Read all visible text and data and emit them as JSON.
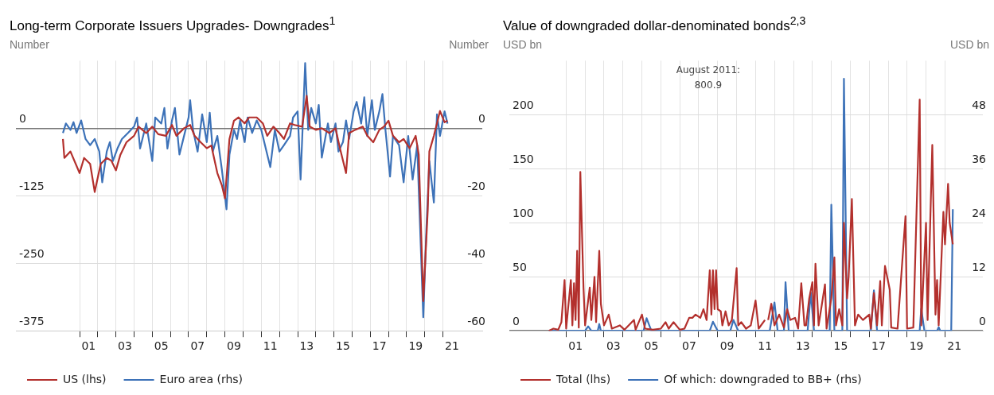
{
  "chart_data": [
    {
      "type": "line",
      "title": "Long-term Corporate Issuers Upgrades- Downgrades$^{1}$",
      "ylabel": "Number",
      "y2label": "Number",
      "legend": "bottom",
      "grid": true,
      "marker": "none",
      "xlim": [
        "1997-07",
        "2023-03"
      ],
      "xticks": [
        {
          "value": "2001-01",
          "label": null
        },
        {
          "value": "2001-07",
          "label": "01"
        },
        {
          "value": "2002-01",
          "label": null
        },
        {
          "value": "2003-01",
          "label": null
        },
        {
          "value": "2003-07",
          "label": "03"
        },
        {
          "value": "2004-01",
          "label": null
        },
        {
          "value": "2005-01",
          "label": null
        },
        {
          "value": "2005-07",
          "label": "05"
        },
        {
          "value": "2006-01",
          "label": null
        },
        {
          "value": "2007-01",
          "label": null
        },
        {
          "value": "2007-07",
          "label": "07"
        },
        {
          "value": "2008-01",
          "label": null
        },
        {
          "value": "2009-01",
          "label": null
        },
        {
          "value": "2009-07",
          "label": "09"
        },
        {
          "value": "2010-01",
          "label": null
        },
        {
          "value": "2011-01",
          "label": null
        },
        {
          "value": "2011-07",
          "label": "11"
        },
        {
          "value": "2012-01",
          "label": null
        },
        {
          "value": "2013-01",
          "label": null
        },
        {
          "value": "2013-07",
          "label": "13"
        },
        {
          "value": "2014-01",
          "label": null
        },
        {
          "value": "2015-01",
          "label": null
        },
        {
          "value": "2015-07",
          "label": "15"
        },
        {
          "value": "2016-01",
          "label": null
        },
        {
          "value": "2017-01",
          "label": null
        },
        {
          "value": "2017-07",
          "label": "17"
        },
        {
          "value": "2018-01",
          "label": null
        },
        {
          "value": "2019-01",
          "label": null
        },
        {
          "value": "2019-07",
          "label": "19"
        },
        {
          "value": "2020-01",
          "label": null
        },
        {
          "value": "2021-01",
          "label": null
        },
        {
          "value": "2021-07",
          "label": "21"
        }
      ],
      "ylim": [
        -375,
        125
      ],
      "yticks": [
        -375,
        -250,
        -125,
        0
      ],
      "y2lim": [
        -60,
        20
      ],
      "y2ticks": [
        -60,
        -40,
        -20,
        0
      ],
      "series": [
        {
          "name": "US (lhs)",
          "color": "#b3302d",
          "x": [
            "2000-02",
            "2000-03",
            "2000-07",
            "2001-01",
            "2001-04",
            "2001-08",
            "2001-11",
            "2002-03",
            "2002-07",
            "2002-10",
            "2003-01",
            "2003-04",
            "2003-08",
            "2004-01",
            "2004-04",
            "2004-09",
            "2005-01",
            "2005-05",
            "2005-10",
            "2006-02",
            "2006-05",
            "2006-10",
            "2007-02",
            "2007-05",
            "2007-09",
            "2008-01",
            "2008-04",
            "2008-08",
            "2008-11",
            "2009-01",
            "2009-04",
            "2009-07",
            "2009-10",
            "2010-02",
            "2010-05",
            "2010-10",
            "2011-02",
            "2011-05",
            "2011-09",
            "2012-01",
            "2012-04",
            "2012-08",
            "2012-11",
            "2013-04",
            "2013-07",
            "2013-09",
            "2014-01",
            "2014-05",
            "2014-10",
            "2015-02",
            "2015-05",
            "2015-09",
            "2015-11",
            "2016-03",
            "2016-08",
            "2016-11",
            "2017-03",
            "2017-07",
            "2017-10",
            "2018-01",
            "2018-04",
            "2018-08",
            "2018-11",
            "2019-03",
            "2019-07",
            "2019-09",
            "2019-12",
            "2020-03",
            "2020-04",
            "2020-07",
            "2020-09",
            "2020-11",
            "2021-02",
            "2021-04"
          ],
          "values": [
            -20,
            -55,
            -43,
            -83,
            -55,
            -66,
            -118,
            -66,
            -55,
            -60,
            -78,
            -49,
            -26,
            -14,
            3,
            -9,
            3,
            -11,
            -14,
            6,
            -14,
            0,
            6,
            -14,
            -26,
            -37,
            -32,
            -83,
            -106,
            -130,
            -20,
            14,
            20,
            9,
            20,
            20,
            9,
            -14,
            3,
            -9,
            -20,
            9,
            6,
            3,
            60,
            3,
            -3,
            0,
            -9,
            0,
            -37,
            -83,
            -9,
            -3,
            3,
            -14,
            -26,
            -3,
            3,
            14,
            -14,
            -26,
            -20,
            -37,
            -14,
            -49,
            -320,
            -150,
            -43,
            -14,
            9,
            32,
            11,
            14
          ]
        },
        {
          "name": "Euro area (rhs)",
          "color": "#3d72b8",
          "axis": "y2",
          "x": [
            "2000-02",
            "2000-04",
            "2000-07",
            "2000-09",
            "2000-11",
            "2001-02",
            "2001-05",
            "2001-08",
            "2001-11",
            "2002-02",
            "2002-04",
            "2002-07",
            "2002-09",
            "2002-11",
            "2003-02",
            "2003-05",
            "2003-09",
            "2004-01",
            "2004-03",
            "2004-05",
            "2004-09",
            "2005-01",
            "2005-03",
            "2005-07",
            "2005-09",
            "2005-11",
            "2006-02",
            "2006-04",
            "2006-07",
            "2006-10",
            "2007-01",
            "2007-02",
            "2007-04",
            "2007-07",
            "2007-10",
            "2008-01",
            "2008-03",
            "2008-05",
            "2008-08",
            "2008-11",
            "2009-02",
            "2009-04",
            "2009-07",
            "2009-09",
            "2009-11",
            "2010-02",
            "2010-04",
            "2010-07",
            "2010-10",
            "2011-01",
            "2011-04",
            "2011-07",
            "2011-10",
            "2012-01",
            "2012-04",
            "2012-08",
            "2012-10",
            "2013-01",
            "2013-03",
            "2013-06",
            "2013-08",
            "2013-10",
            "2014-01",
            "2014-03",
            "2014-05",
            "2014-09",
            "2014-11",
            "2015-02",
            "2015-04",
            "2015-07",
            "2015-09",
            "2015-11",
            "2016-02",
            "2016-04",
            "2016-07",
            "2016-09",
            "2016-11",
            "2017-02",
            "2017-04",
            "2017-07",
            "2017-09",
            "2017-11",
            "2018-02",
            "2018-04",
            "2018-08",
            "2018-11",
            "2019-02",
            "2019-05",
            "2019-08",
            "2019-12",
            "2020-02",
            "2020-04",
            "2020-07",
            "2020-09",
            "2020-11",
            "2021-02",
            "2021-04"
          ],
          "values": [
            -1.4,
            1.4,
            -0.5,
            1.8,
            -1.4,
            2.3,
            -3.2,
            -5,
            -3.2,
            -6.9,
            -16,
            -6.9,
            -4.1,
            -9.7,
            -6,
            -3.2,
            -1.4,
            0.5,
            3.2,
            -6,
            1.4,
            -9.7,
            3.2,
            1.4,
            6,
            -6,
            2.3,
            6,
            -7.8,
            -2.3,
            3.2,
            8.3,
            -0.5,
            -6.9,
            4.1,
            -4.1,
            4.6,
            -6.9,
            -2.3,
            -12.4,
            -24,
            -7.8,
            -0.5,
            -3.2,
            2.3,
            -4.1,
            3.2,
            -1.4,
            2.3,
            -0.5,
            -6,
            -11.5,
            -0.5,
            -6.9,
            -5,
            -2.3,
            3.2,
            5,
            -15.2,
            19.3,
            -0.5,
            6,
            1.4,
            6.9,
            -8.7,
            1.4,
            -4.1,
            1.4,
            -6.9,
            -4.1,
            2.3,
            -3.2,
            5,
            7.8,
            1.4,
            9.2,
            -2.3,
            8.3,
            -0.5,
            5,
            10.1,
            -0.5,
            -14.3,
            -2.3,
            -5,
            -16,
            -2.3,
            -15.2,
            -5,
            -56,
            -30,
            -9.7,
            -22,
            4.1,
            -2.3,
            5,
            1.4
          ]
        }
      ]
    },
    {
      "type": "line",
      "title": "Value of downgraded dollar-denominated bonds$^{2,3}$",
      "ylabel": "USD bn",
      "y2label": "USD bn",
      "legend": "bottom",
      "grid": true,
      "marker": "none",
      "xlim": [
        "1998-01",
        "2023-01"
      ],
      "xticks": [
        {
          "value": "2001-01",
          "label": null
        },
        {
          "value": "2001-07",
          "label": "01"
        },
        {
          "value": "2002-01",
          "label": null
        },
        {
          "value": "2003-01",
          "label": null
        },
        {
          "value": "2003-07",
          "label": "03"
        },
        {
          "value": "2004-01",
          "label": null
        },
        {
          "value": "2005-01",
          "label": null
        },
        {
          "value": "2005-07",
          "label": "05"
        },
        {
          "value": "2006-01",
          "label": null
        },
        {
          "value": "2007-01",
          "label": null
        },
        {
          "value": "2007-07",
          "label": "07"
        },
        {
          "value": "2008-01",
          "label": null
        },
        {
          "value": "2009-01",
          "label": null
        },
        {
          "value": "2009-07",
          "label": "09"
        },
        {
          "value": "2010-01",
          "label": null
        },
        {
          "value": "2011-01",
          "label": null
        },
        {
          "value": "2011-07",
          "label": "11"
        },
        {
          "value": "2012-01",
          "label": null
        },
        {
          "value": "2013-01",
          "label": null
        },
        {
          "value": "2013-07",
          "label": "13"
        },
        {
          "value": "2014-01",
          "label": null
        },
        {
          "value": "2015-01",
          "label": null
        },
        {
          "value": "2015-07",
          "label": "15"
        },
        {
          "value": "2016-01",
          "label": null
        },
        {
          "value": "2017-01",
          "label": null
        },
        {
          "value": "2017-07",
          "label": "17"
        },
        {
          "value": "2018-01",
          "label": null
        },
        {
          "value": "2019-01",
          "label": null
        },
        {
          "value": "2019-07",
          "label": "19"
        },
        {
          "value": "2020-01",
          "label": null
        },
        {
          "value": "2021-01",
          "label": null
        },
        {
          "value": "2021-07",
          "label": "21"
        }
      ],
      "ylim": [
        0,
        250
      ],
      "yticks": [
        0,
        50,
        100,
        150,
        200
      ],
      "y2lim": [
        0,
        60
      ],
      "y2ticks": [
        0,
        12,
        24,
        36,
        48
      ],
      "annotations": [
        "August 2011: 800.9"
      ],
      "series": [
        {
          "name": "Total (lhs)",
          "color": "#b3302d",
          "x": [
            "2000-02",
            "2000-05",
            "2000-08",
            "2000-10",
            "2000-12",
            "2001-01",
            "2001-04",
            "2001-05",
            "2001-06",
            "2001-07",
            "2001-08",
            "2001-09",
            "2001-10",
            "2001-12",
            "2002-01",
            "2002-04",
            "2002-05",
            "2002-07",
            "2002-08",
            "2002-10",
            "2002-11",
            "2003-01",
            "2003-04",
            "2003-06",
            "2003-11",
            "2004-02",
            "2004-08",
            "2004-09",
            "2005-01",
            "2005-03",
            "2005-08",
            "2006-01",
            "2006-04",
            "2006-06",
            "2006-09",
            "2007-01",
            "2007-04",
            "2007-07",
            "2007-09",
            "2007-11",
            "2008-02",
            "2008-04",
            "2008-06",
            "2008-08",
            "2008-09",
            "2008-10",
            "2008-11",
            "2008-12",
            "2009-01",
            "2009-03",
            "2009-04",
            "2009-06",
            "2009-08",
            "2009-10",
            "2010-01",
            "2010-02",
            "2010-04",
            "2010-07",
            "2010-10",
            "2011-01",
            "2011-03",
            "2011-07",
            "2011-08",
            "2011-09",
            "2011-11",
            "2012-01",
            "2012-04",
            "2012-07",
            "2012-09",
            "2012-11",
            "2013-02",
            "2013-04",
            "2013-06",
            "2013-08",
            "2013-09",
            "2013-11",
            "2014-01",
            "2014-02",
            "2014-03",
            "2014-05",
            "2014-09",
            "2014-10",
            "2015-01",
            "2015-03",
            "2015-04",
            "2015-06",
            "2015-08",
            "2015-09",
            "2015-11",
            "2015-12",
            "2016-02",
            "2016-04",
            "2016-06",
            "2016-09",
            "2017-01",
            "2017-02",
            "2017-04",
            "2017-06",
            "2017-08",
            "2017-09",
            "2017-11",
            "2018-02",
            "2018-03",
            "2018-07",
            "2018-12",
            "2019-01",
            "2019-05",
            "2019-09",
            "2019-10",
            "2020-01",
            "2020-02",
            "2020-05",
            "2020-07",
            "2020-08",
            "2020-09",
            "2020-12",
            "2021-01",
            "2021-03",
            "2021-04",
            "2021-06"
          ],
          "values": [
            0,
            2,
            1,
            8,
            47,
            2,
            47,
            5,
            44,
            10,
            74,
            3,
            147,
            40,
            5,
            40,
            10,
            50,
            8,
            74,
            25,
            5,
            15,
            2,
            5,
            1,
            10,
            1,
            15,
            2,
            1,
            2,
            8,
            2,
            8,
            1,
            2,
            12,
            12,
            15,
            12,
            20,
            10,
            56,
            15,
            56,
            20,
            56,
            20,
            18,
            5,
            18,
            5,
            10,
            58,
            5,
            8,
            2,
            5,
            28,
            2,
            10,
            null,
            10,
            25,
            5,
            15,
            3,
            20,
            10,
            12,
            2,
            44,
            5,
            5,
            30,
            45,
            5,
            62,
            5,
            43,
            2,
            30,
            68,
            5,
            20,
            5,
            100,
            30,
            50,
            122,
            5,
            15,
            10,
            15,
            2,
            35,
            5,
            46,
            5,
            60,
            38,
            3,
            2,
            106,
            2,
            3,
            214,
            5,
            100,
            10,
            172,
            15,
            47,
            5,
            110,
            80,
            136,
            100,
            80
          ]
        },
        {
          "name": "Of which: downgraded to BB+ (rhs)",
          "color": "#3d72b8",
          "axis": "y2",
          "x": [
            "2000-02",
            "2002-01",
            "2002-03",
            "2002-05",
            "2002-09",
            "2002-10",
            "2002-11",
            "2005-02",
            "2005-04",
            "2005-07",
            "2008-08",
            "2008-10",
            "2009-01",
            "2009-09",
            "2009-11",
            "2010-02",
            "2011-10",
            "2012-01",
            "2012-03",
            "2012-07",
            "2012-08",
            "2012-10",
            "2013-10",
            "2013-12",
            "2014-02",
            "2014-12",
            "2015-01",
            "2015-03",
            "2015-08",
            "2015-09",
            "2015-11",
            "2017-02",
            "2017-04",
            "2017-06",
            "2019-09",
            "2019-10",
            "2019-12",
            "2020-08",
            "2020-09",
            "2020-10",
            "2021-05",
            "2021-06"
          ],
          "values": [
            0,
            0,
            1,
            0,
            0,
            1.5,
            0,
            0,
            2.8,
            0,
            0,
            2,
            0,
            0,
            2.4,
            0,
            0,
            6.3,
            0,
            0,
            10.8,
            0,
            0,
            8.5,
            0,
            0,
            28,
            0,
            0,
            56,
            0,
            0,
            9,
            0,
            0,
            4.9,
            0,
            0,
            0.8,
            0,
            0,
            27
          ]
        }
      ]
    }
  ]
}
